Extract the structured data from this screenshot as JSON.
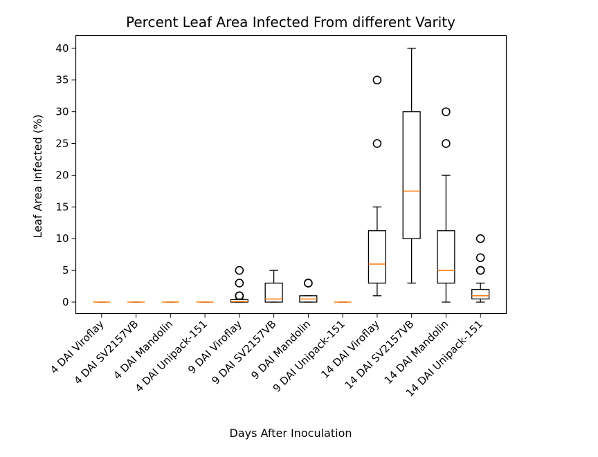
{
  "chart_data": {
    "type": "box",
    "title": "Percent Leaf Area Infected From different Varity",
    "xlabel": "Days After Inoculation",
    "ylabel": "Leaf Area Infected (%)",
    "ylim": [
      -1.8,
      42
    ],
    "yticks": [
      0,
      5,
      10,
      15,
      20,
      25,
      30,
      35,
      40
    ],
    "grid": false,
    "median_color": "#ff7f0e",
    "categories": [
      "4 DAI Viroflay",
      "4 DAI SV2157VB",
      "4 DAI Mandolin",
      "4 DAI Unipack-151",
      "9 DAI Viroflay",
      "9 DAI SV2157VB",
      "9 DAI Mandolin",
      "9 DAI Unipack-151",
      "14 DAI Viroflay",
      "14 DAI SV2157VB",
      "14 DAI Mandolin",
      "14 DAI Unipack-151"
    ],
    "boxes": [
      {
        "whislo": 0,
        "q1": 0,
        "med": 0,
        "q3": 0,
        "whishi": 0,
        "fliers": []
      },
      {
        "whislo": 0,
        "q1": 0,
        "med": 0,
        "q3": 0,
        "whishi": 0,
        "fliers": []
      },
      {
        "whislo": 0,
        "q1": 0,
        "med": 0,
        "q3": 0,
        "whishi": 0,
        "fliers": []
      },
      {
        "whislo": 0,
        "q1": 0,
        "med": 0,
        "q3": 0,
        "whishi": 0,
        "fliers": []
      },
      {
        "whislo": 0,
        "q1": 0,
        "med": 0.1,
        "q3": 0.4,
        "whishi": 0.5,
        "fliers": [
          1,
          1,
          3,
          5
        ]
      },
      {
        "whislo": 0,
        "q1": 0,
        "med": 0.5,
        "q3": 3,
        "whishi": 5,
        "fliers": []
      },
      {
        "whislo": 0,
        "q1": 0,
        "med": 0.5,
        "q3": 1,
        "whishi": 1,
        "fliers": [
          3,
          3
        ]
      },
      {
        "whislo": 0,
        "q1": 0,
        "med": 0,
        "q3": 0,
        "whishi": 0,
        "fliers": []
      },
      {
        "whislo": 1,
        "q1": 3,
        "med": 6,
        "q3": 11.25,
        "whishi": 15,
        "fliers": [
          25,
          35
        ]
      },
      {
        "whislo": 3,
        "q1": 10,
        "med": 17.5,
        "q3": 30,
        "whishi": 40,
        "fliers": []
      },
      {
        "whislo": 0,
        "q1": 3,
        "med": 5,
        "q3": 11.25,
        "whishi": 20,
        "fliers": [
          25,
          30
        ]
      },
      {
        "whislo": 0,
        "q1": 0.5,
        "med": 1,
        "q3": 2,
        "whishi": 3,
        "fliers": [
          5,
          5,
          7,
          10
        ]
      }
    ]
  }
}
